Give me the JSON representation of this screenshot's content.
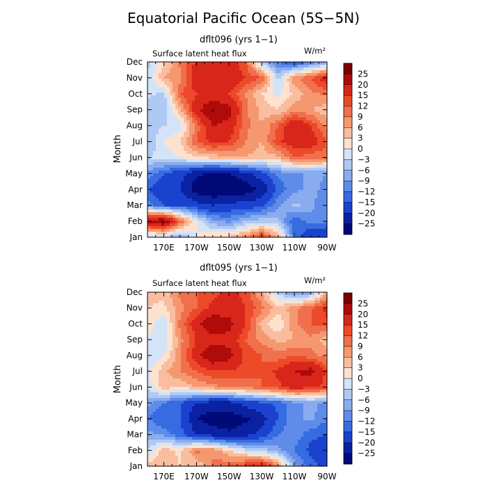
{
  "figure": {
    "title": "Equatorial Pacific Ocean (5S−5N)"
  },
  "chart_data": [
    {
      "type": "heatmap",
      "title": "dflt096 (yrs 1−1)",
      "subtitle": "Surface latent heat flux",
      "units": "W/m²",
      "ylabel": "Month",
      "xlabel": "",
      "x_tick_labels": [
        "170E",
        "170W",
        "150W",
        "130W",
        "110W",
        "90W"
      ],
      "x_tick_values": [
        170,
        190,
        210,
        230,
        250,
        270
      ],
      "xlim": [
        160,
        270
      ],
      "y_tick_labels": [
        "Jan",
        "Feb",
        "Mar",
        "Apr",
        "May",
        "Jun",
        "Jul",
        "Aug",
        "Sep",
        "Oct",
        "Nov",
        "Dec"
      ],
      "ylim": [
        1,
        12
      ],
      "grid": false,
      "x": [
        160,
        170,
        180,
        190,
        200,
        210,
        220,
        230,
        240,
        250,
        260,
        270
      ],
      "y": [
        1,
        2,
        3,
        4,
        5,
        6,
        7,
        8,
        9,
        10,
        11,
        12
      ],
      "values": [
        [
          -5,
          -4,
          -8,
          0,
          3,
          4,
          8,
          15,
          6,
          -12,
          -20,
          -20
        ],
        [
          22,
          27,
          12,
          0,
          -8,
          -10,
          -6,
          -4,
          -5,
          -15,
          -10,
          -12
        ],
        [
          -10,
          -15,
          -15,
          -18,
          -20,
          -18,
          -18,
          -16,
          -10,
          -5,
          -8,
          -12
        ],
        [
          -15,
          -18,
          -20,
          -28,
          -30,
          -30,
          -28,
          -24,
          -14,
          -10,
          -8,
          -10
        ],
        [
          -10,
          -15,
          -18,
          -24,
          -26,
          -25,
          -22,
          -17,
          -11,
          -10,
          -8,
          -9
        ],
        [
          -3,
          -2,
          0,
          3,
          4,
          5,
          6,
          4,
          5,
          12,
          10,
          10
        ],
        [
          -6,
          0,
          3,
          12,
          16,
          15,
          9,
          6,
          14,
          18,
          18,
          12
        ],
        [
          -5,
          -3,
          -2,
          10,
          20,
          18,
          10,
          6,
          12,
          20,
          15,
          8
        ],
        [
          -5,
          -6,
          5,
          18,
          26,
          22,
          10,
          5,
          3,
          8,
          6,
          4
        ],
        [
          -2,
          -4,
          12,
          15,
          16,
          15,
          9,
          3,
          -1,
          4,
          8,
          10
        ],
        [
          -3,
          6,
          8,
          18,
          20,
          20,
          15,
          12,
          -4,
          8,
          12,
          18
        ],
        [
          -4,
          2,
          10,
          16,
          18,
          17,
          12,
          -5,
          -12,
          -16,
          -12,
          -8
        ]
      ]
    },
    {
      "type": "heatmap",
      "title": "dflt095 (yrs 1−1)",
      "subtitle": "Surface latent heat flux",
      "units": "W/m²",
      "ylabel": "Month",
      "xlabel": "",
      "x_tick_labels": [
        "170E",
        "170W",
        "150W",
        "130W",
        "110W",
        "90W"
      ],
      "x_tick_values": [
        170,
        190,
        210,
        230,
        250,
        270
      ],
      "xlim": [
        160,
        270
      ],
      "y_tick_labels": [
        "Jan",
        "Feb",
        "Mar",
        "Apr",
        "May",
        "Jun",
        "Jul",
        "Aug",
        "Sep",
        "Oct",
        "Nov",
        "Dec"
      ],
      "ylim": [
        1,
        12
      ],
      "grid": false,
      "x": [
        160,
        170,
        180,
        190,
        200,
        210,
        220,
        230,
        240,
        250,
        260,
        270
      ],
      "y": [
        1,
        2,
        3,
        4,
        5,
        6,
        7,
        8,
        9,
        10,
        11,
        12
      ],
      "values": [
        [
          4,
          6,
          3,
          3,
          10,
          12,
          15,
          18,
          10,
          -8,
          -14,
          -16
        ],
        [
          -3,
          5,
          2,
          10,
          8,
          3,
          -2,
          -4,
          -8,
          -12,
          -16,
          -18
        ],
        [
          -8,
          -10,
          -14,
          -20,
          -22,
          -24,
          -22,
          -18,
          -12,
          -10,
          -14,
          -15
        ],
        [
          -12,
          -15,
          -14,
          -25,
          -28,
          -28,
          -26,
          -22,
          -15,
          -10,
          -8,
          -12
        ],
        [
          -8,
          -12,
          -15,
          -20,
          -22,
          -22,
          -18,
          -16,
          -14,
          -10,
          -8,
          -10
        ],
        [
          -2,
          5,
          3,
          6,
          8,
          9,
          10,
          12,
          14,
          18,
          16,
          14
        ],
        [
          -1,
          5,
          9,
          12,
          15,
          15,
          14,
          12,
          16,
          20,
          22,
          14
        ],
        [
          -3,
          0,
          8,
          18,
          25,
          22,
          14,
          12,
          10,
          12,
          10,
          8
        ],
        [
          0,
          -3,
          8,
          15,
          18,
          18,
          12,
          8,
          5,
          6,
          8,
          4
        ],
        [
          2,
          -3,
          10,
          18,
          25,
          22,
          15,
          5,
          0,
          8,
          12,
          14
        ],
        [
          3,
          2,
          8,
          12,
          16,
          17,
          15,
          10,
          4,
          8,
          12,
          16
        ],
        [
          4,
          4,
          10,
          12,
          14,
          16,
          14,
          6,
          -4,
          -10,
          -8,
          6
        ]
      ]
    }
  ],
  "colorbar": {
    "levels": [
      "25",
      "20",
      "15",
      "12",
      "9",
      "6",
      "3",
      "0",
      "−3",
      "−6",
      "−9",
      "−12",
      "−15",
      "−20",
      "−25"
    ],
    "colors": [
      "#7a0000",
      "#b00b0b",
      "#d9261b",
      "#ec4a28",
      "#f06f4c",
      "#f6986f",
      "#f9bd9f",
      "#fde2cf",
      "#d4e4f8",
      "#b0c9f2",
      "#89acee",
      "#5f8ce9",
      "#376be1",
      "#1a42cf",
      "#0a22a2",
      "#000a76"
    ]
  }
}
